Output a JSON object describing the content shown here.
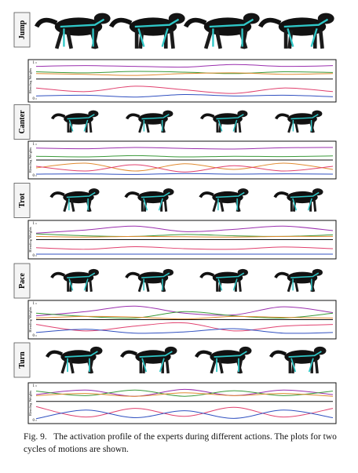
{
  "figure": {
    "panels": [
      {
        "label": "Jump"
      },
      {
        "label": "Canter"
      },
      {
        "label": "Trot"
      },
      {
        "label": "Pace"
      },
      {
        "label": "Turn"
      }
    ]
  },
  "chart_data": [
    {
      "type": "line",
      "y_label": "Blending Weights",
      "ylim": [
        0,
        1
      ],
      "yticks": [
        0,
        1
      ],
      "categories": [
        null,
        null,
        null,
        null,
        null,
        null,
        null
      ],
      "series": [
        {
          "color": "#9a2fae",
          "values": [
            0.9,
            0.92,
            0.9,
            0.88,
            0.95,
            0.9,
            0.92
          ]
        },
        {
          "color": "#3a9a3a",
          "values": [
            0.75,
            0.72,
            0.76,
            0.74,
            0.7,
            0.75,
            0.73
          ]
        },
        {
          "color": "#e08a30",
          "values": [
            0.7,
            0.68,
            0.65,
            0.7,
            0.72,
            0.68,
            0.7
          ]
        },
        {
          "color": "#111111",
          "values": [
            0.55,
            0.55,
            0.55,
            0.55,
            0.55,
            0.55,
            0.55
          ]
        },
        {
          "color": "#e0406e",
          "values": [
            0.3,
            0.2,
            0.35,
            0.25,
            0.15,
            0.3,
            0.2
          ]
        },
        {
          "color": "#3050c0",
          "values": [
            0.08,
            0.1,
            0.05,
            0.12,
            0.08,
            0.1,
            0.06
          ]
        }
      ]
    },
    {
      "type": "line",
      "y_label": "Blending Weights",
      "ylim": [
        0,
        1
      ],
      "yticks": [
        0,
        1
      ],
      "categories": [
        null,
        null,
        null,
        null,
        null,
        null,
        null
      ],
      "series": [
        {
          "color": "#9a2fae",
          "values": [
            0.88,
            0.86,
            0.9,
            0.87,
            0.85,
            0.89,
            0.9
          ]
        },
        {
          "color": "#3a9a3a",
          "values": [
            0.62,
            0.6,
            0.64,
            0.6,
            0.62,
            0.61,
            0.63
          ]
        },
        {
          "color": "#e08a30",
          "values": [
            0.25,
            0.4,
            0.15,
            0.38,
            0.2,
            0.4,
            0.2
          ]
        },
        {
          "color": "#111111",
          "values": [
            0.5,
            0.5,
            0.5,
            0.5,
            0.5,
            0.5,
            0.5
          ]
        },
        {
          "color": "#e0406e",
          "values": [
            0.3,
            0.15,
            0.35,
            0.12,
            0.32,
            0.15,
            0.3
          ]
        },
        {
          "color": "#3050c0",
          "values": [
            0.05,
            0.06,
            0.04,
            0.07,
            0.05,
            0.06,
            0.05
          ]
        }
      ]
    },
    {
      "type": "line",
      "y_label": "Blending Weights",
      "ylim": [
        0,
        1
      ],
      "yticks": [
        0,
        1
      ],
      "categories": [
        null,
        null,
        null,
        null,
        null,
        null,
        null
      ],
      "series": [
        {
          "color": "#9a2fae",
          "values": [
            0.7,
            0.8,
            0.92,
            0.75,
            0.82,
            0.92,
            0.78
          ]
        },
        {
          "color": "#3a9a3a",
          "values": [
            0.68,
            0.62,
            0.6,
            0.66,
            0.62,
            0.6,
            0.65
          ]
        },
        {
          "color": "#e08a30",
          "values": [
            0.6,
            0.58,
            0.6,
            0.59,
            0.58,
            0.6,
            0.6
          ]
        },
        {
          "color": "#111111",
          "values": [
            0.5,
            0.5,
            0.5,
            0.5,
            0.5,
            0.5,
            0.5
          ]
        },
        {
          "color": "#e0406e",
          "values": [
            0.25,
            0.2,
            0.28,
            0.22,
            0.2,
            0.27,
            0.22
          ]
        },
        {
          "color": "#3050c0",
          "values": [
            0.05,
            0.05,
            0.05,
            0.05,
            0.05,
            0.05,
            0.05
          ]
        }
      ]
    },
    {
      "type": "line",
      "y_label": "Blending Weights",
      "ylim": [
        0,
        1
      ],
      "yticks": [
        0,
        1
      ],
      "categories": [
        null,
        null,
        null,
        null,
        null,
        null,
        null
      ],
      "series": [
        {
          "color": "#9a2fae",
          "values": [
            0.62,
            0.75,
            0.92,
            0.7,
            0.65,
            0.9,
            0.72
          ]
        },
        {
          "color": "#3a9a3a",
          "values": [
            0.7,
            0.6,
            0.55,
            0.75,
            0.62,
            0.55,
            0.7
          ]
        },
        {
          "color": "#e08a30",
          "values": [
            0.55,
            0.6,
            0.58,
            0.52,
            0.6,
            0.57,
            0.55
          ]
        },
        {
          "color": "#111111",
          "values": [
            0.5,
            0.5,
            0.5,
            0.5,
            0.5,
            0.5,
            0.5
          ]
        },
        {
          "color": "#e0406e",
          "values": [
            0.35,
            0.15,
            0.3,
            0.4,
            0.15,
            0.3,
            0.35
          ]
        },
        {
          "color": "#3050c0",
          "values": [
            0.1,
            0.2,
            0.08,
            0.12,
            0.22,
            0.08,
            0.1
          ]
        }
      ]
    },
    {
      "type": "line",
      "y_label": "Blending Weights",
      "ylim": [
        0,
        1
      ],
      "yticks": [
        0,
        1
      ],
      "categories": [
        null,
        null,
        null,
        null,
        null,
        null,
        null
      ],
      "series": [
        {
          "color": "#9a2fae",
          "values": [
            0.75,
            0.88,
            0.7,
            0.9,
            0.72,
            0.88,
            0.75
          ]
        },
        {
          "color": "#3a9a3a",
          "values": [
            0.85,
            0.72,
            0.88,
            0.7,
            0.86,
            0.72,
            0.85
          ]
        },
        {
          "color": "#e08a30",
          "values": [
            0.72,
            0.78,
            0.7,
            0.8,
            0.72,
            0.78,
            0.7
          ]
        },
        {
          "color": "#111111",
          "values": [
            0.55,
            0.55,
            0.55,
            0.55,
            0.55,
            0.55,
            0.55
          ]
        },
        {
          "color": "#e0406e",
          "values": [
            0.4,
            0.1,
            0.35,
            0.12,
            0.38,
            0.1,
            0.35
          ]
        },
        {
          "color": "#3050c0",
          "values": [
            0.05,
            0.3,
            0.08,
            0.28,
            0.06,
            0.3,
            0.08
          ]
        }
      ]
    }
  ],
  "caption": {
    "label": "Fig. 9.",
    "text": "The activation profile of the experts during different actions. The plots for two cycles of motions are shown."
  }
}
